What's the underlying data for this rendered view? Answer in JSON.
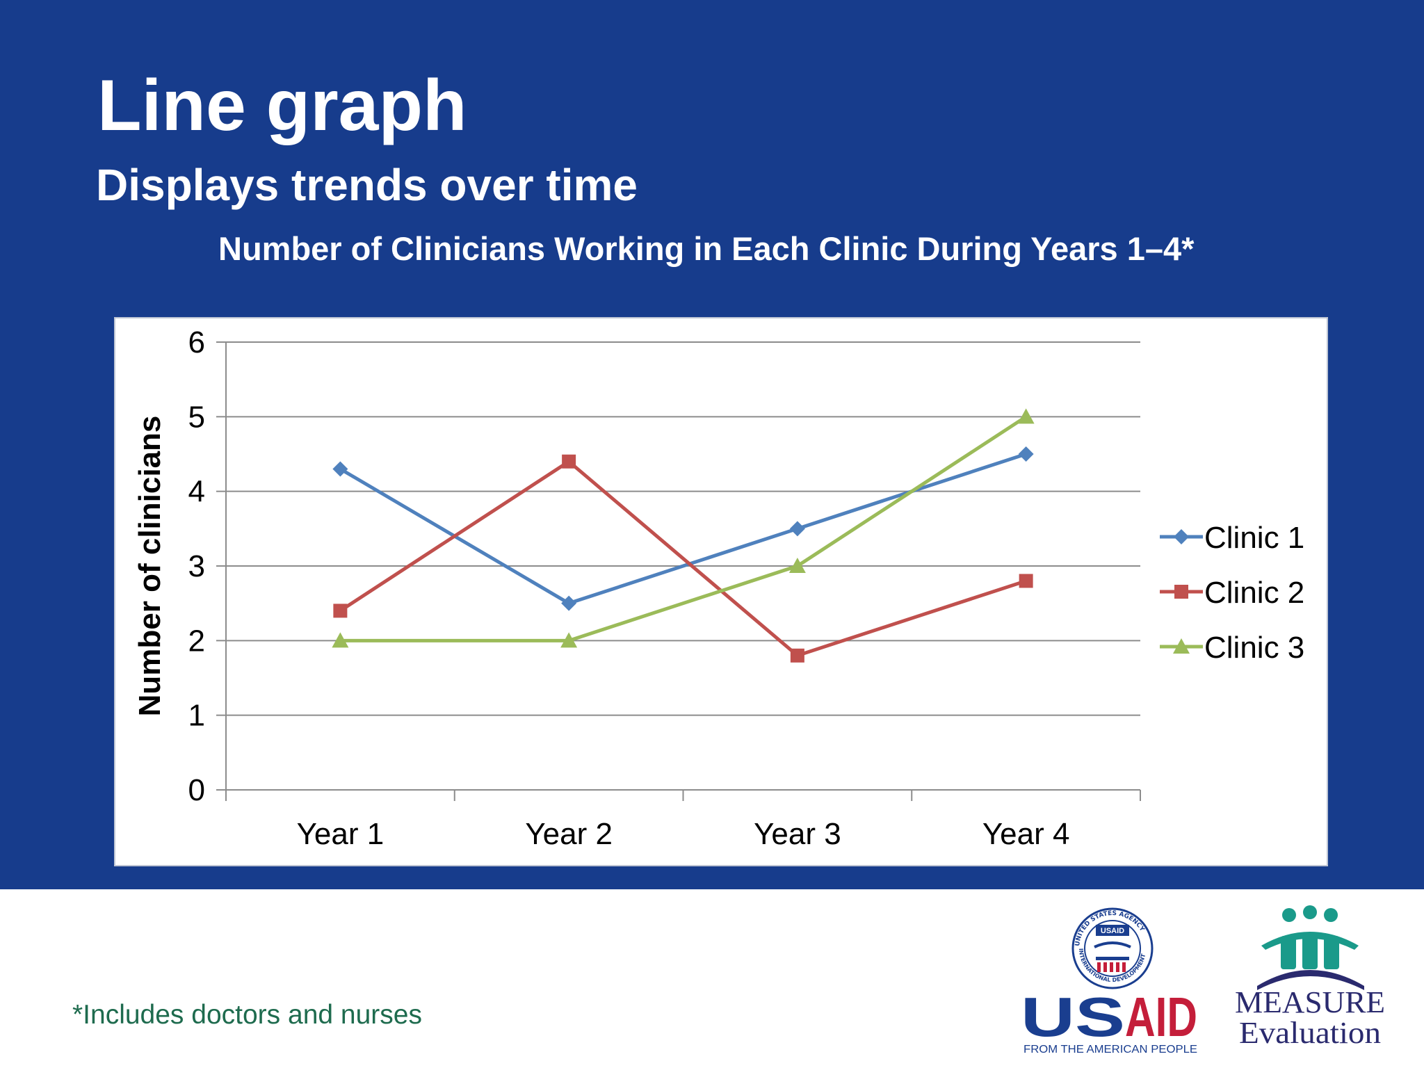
{
  "slide": {
    "title": "Line graph",
    "subtitle": "Displays trends over time",
    "footnote": "*Includes doctors and nurses"
  },
  "logos": {
    "usaid": {
      "wordmark": "USAID",
      "tagline": "FROM THE AMERICAN PEOPLE",
      "seal_text": "UNITED STATES AGENCY INTERNATIONAL DEVELOPMENT",
      "color_blue": "#1a3e8f",
      "color_red": "#c41e3a"
    },
    "measure": {
      "line1": "MEASURE",
      "line2": "Evaluation",
      "color_teal": "#1a9a8a",
      "color_navy": "#2a2a6e"
    }
  },
  "colors": {
    "banner": "#173c8c",
    "clinic_1": "#4f81bd",
    "clinic_2": "#c0504d",
    "clinic_3": "#9bbb59"
  },
  "chart_data": {
    "type": "line",
    "title": "Number of Clinicians Working in Each Clinic During Years 1–4*",
    "xlabel": "",
    "ylabel": "Number of clinicians",
    "categories": [
      "Year 1",
      "Year 2",
      "Year 3",
      "Year 4"
    ],
    "ylim": [
      0,
      6
    ],
    "yticks": [
      "0",
      "1",
      "2",
      "3",
      "4",
      "5",
      "6"
    ],
    "grid": true,
    "legend_position": "right",
    "series": [
      {
        "name": "Clinic 1",
        "marker": "diamond",
        "color": "#4f81bd",
        "values": [
          4.3,
          2.5,
          3.5,
          4.5
        ]
      },
      {
        "name": "Clinic 2",
        "marker": "square",
        "color": "#c0504d",
        "values": [
          2.4,
          4.4,
          1.8,
          2.8
        ]
      },
      {
        "name": "Clinic 3",
        "marker": "triangle",
        "color": "#9bbb59",
        "values": [
          2.0,
          2.0,
          3.0,
          5.0
        ]
      }
    ]
  }
}
